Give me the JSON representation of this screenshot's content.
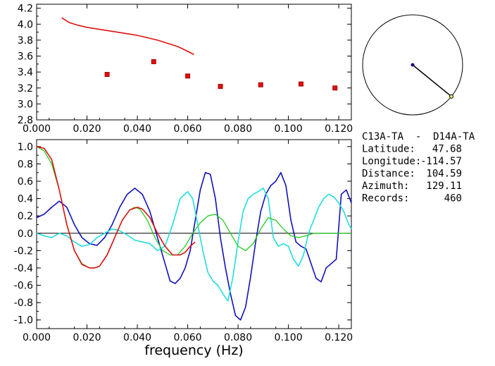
{
  "info": {
    "station_pair": "C13A-TA  -  D14A-TA",
    "rows": [
      {
        "label": "Latitude:",
        "value": "47.68"
      },
      {
        "label": "Longitude:",
        "value": "-114.57"
      },
      {
        "label": "Distance:",
        "value": "104.59"
      },
      {
        "label": "Azimuth:",
        "value": "129.11"
      },
      {
        "label": "Records:",
        "value": "460"
      }
    ]
  },
  "colors": {
    "red": "#dd1111",
    "blue": "#1111bb",
    "cyan": "#22dddd",
    "green": "#22cc22",
    "axis": "#000000",
    "marker_edge": "#aa0000",
    "azimuth_end": "#eeee66",
    "azimuth_center": "#111188"
  },
  "chart_data": [
    {
      "type": "scatter",
      "title": "",
      "xlabel": "",
      "ylabel": "",
      "xlim": [
        0.0,
        0.125
      ],
      "ylim": [
        2.8,
        4.25
      ],
      "x_ticks": [
        "0.000",
        "0.020",
        "0.040",
        "0.060",
        "0.080",
        "0.100",
        "0.120"
      ],
      "y_ticks": [
        "2.8",
        "3.0",
        "3.2",
        "3.4",
        "3.6",
        "3.8",
        "4.0",
        "4.2"
      ],
      "series": [
        {
          "kind": "line",
          "color": "#dd1111",
          "x": [
            0.01,
            0.013,
            0.016,
            0.02,
            0.024,
            0.028,
            0.032,
            0.036,
            0.04,
            0.044,
            0.048,
            0.052,
            0.056,
            0.06,
            0.0625
          ],
          "y": [
            4.08,
            4.02,
            3.99,
            3.96,
            3.94,
            3.92,
            3.9,
            3.88,
            3.86,
            3.83,
            3.8,
            3.76,
            3.72,
            3.66,
            3.62
          ]
        },
        {
          "kind": "points",
          "color": "#dd1111",
          "x": [
            0.028,
            0.0465,
            0.06,
            0.073,
            0.089,
            0.105,
            0.1185
          ],
          "y": [
            3.37,
            3.53,
            3.35,
            3.22,
            3.24,
            3.25,
            3.2
          ]
        }
      ]
    },
    {
      "type": "line",
      "title": "",
      "xlabel": "frequency (Hz)",
      "ylabel": "",
      "xlim": [
        0.0,
        0.125
      ],
      "ylim": [
        -1.1,
        1.08
      ],
      "x_ticks": [
        "0.000",
        "0.020",
        "0.040",
        "0.060",
        "0.080",
        "0.100",
        "0.120"
      ],
      "y_ticks": [
        "1.0",
        "0.8",
        "0.6",
        "0.4",
        "0.2",
        "0.0",
        "-0.2",
        "-0.4",
        "-0.6",
        "-0.8",
        "-1.0"
      ],
      "zero_line": 0.0,
      "series": [
        {
          "color": "#1111bb",
          "x": [
            0.0,
            0.003,
            0.006,
            0.009,
            0.012,
            0.015,
            0.018,
            0.021,
            0.024,
            0.027,
            0.03,
            0.033,
            0.036,
            0.039,
            0.042,
            0.045,
            0.048,
            0.051,
            0.053,
            0.055,
            0.057,
            0.059,
            0.061,
            0.063,
            0.065,
            0.067,
            0.069,
            0.071,
            0.073,
            0.075,
            0.077,
            0.079,
            0.081,
            0.083,
            0.085,
            0.087,
            0.089,
            0.091,
            0.093,
            0.095,
            0.097,
            0.099,
            0.101,
            0.103,
            0.105,
            0.107,
            0.109,
            0.111,
            0.113,
            0.115,
            0.117,
            0.119,
            0.121,
            0.123,
            0.125
          ],
          "y": [
            0.18,
            0.22,
            0.3,
            0.37,
            0.3,
            0.1,
            -0.05,
            -0.12,
            -0.14,
            -0.05,
            0.1,
            0.3,
            0.45,
            0.52,
            0.45,
            0.25,
            -0.05,
            -0.35,
            -0.55,
            -0.58,
            -0.52,
            -0.4,
            -0.2,
            0.15,
            0.5,
            0.7,
            0.68,
            0.4,
            -0.05,
            -0.4,
            -0.7,
            -0.95,
            -1.0,
            -0.85,
            -0.5,
            -0.1,
            0.25,
            0.45,
            0.55,
            0.6,
            0.7,
            0.55,
            0.15,
            -0.1,
            -0.15,
            -0.18,
            -0.35,
            -0.52,
            -0.56,
            -0.4,
            -0.35,
            -0.3,
            0.45,
            0.5,
            0.35
          ]
        },
        {
          "color": "#22dddd",
          "x": [
            0.0,
            0.003,
            0.006,
            0.009,
            0.012,
            0.015,
            0.018,
            0.021,
            0.024,
            0.027,
            0.03,
            0.033,
            0.036,
            0.039,
            0.042,
            0.045,
            0.048,
            0.051,
            0.054,
            0.057,
            0.06,
            0.062,
            0.064,
            0.066,
            0.068,
            0.07,
            0.072,
            0.074,
            0.076,
            0.078,
            0.08,
            0.082,
            0.084,
            0.086,
            0.088,
            0.09,
            0.092,
            0.094,
            0.096,
            0.098,
            0.1,
            0.102,
            0.104,
            0.106,
            0.108,
            0.11,
            0.112,
            0.114,
            0.116,
            0.118,
            0.12,
            0.122,
            0.124,
            0.125
          ],
          "y": [
            0.0,
            -0.03,
            -0.05,
            0.0,
            -0.03,
            -0.1,
            -0.15,
            -0.13,
            -0.05,
            0.0,
            0.05,
            0.03,
            -0.02,
            -0.08,
            -0.1,
            -0.12,
            -0.2,
            -0.15,
            0.1,
            0.4,
            0.48,
            0.4,
            0.1,
            -0.2,
            -0.45,
            -0.55,
            -0.6,
            -0.7,
            -0.78,
            -0.5,
            -0.1,
            0.25,
            0.4,
            0.45,
            0.48,
            0.52,
            0.4,
            -0.05,
            -0.15,
            -0.12,
            -0.15,
            -0.3,
            -0.38,
            -0.25,
            0.0,
            0.15,
            0.3,
            0.4,
            0.45,
            0.42,
            0.35,
            0.25,
            0.1,
            0.05
          ]
        },
        {
          "color": "#22cc22",
          "x": [
            0.0,
            0.003,
            0.006,
            0.009,
            0.012,
            0.015,
            0.018,
            0.021,
            0.023,
            0.025,
            0.028,
            0.031,
            0.034,
            0.037,
            0.039,
            0.041,
            0.044,
            0.047,
            0.05,
            0.053,
            0.056,
            0.059,
            0.062,
            0.065,
            0.068,
            0.071,
            0.074,
            0.077,
            0.08,
            0.083,
            0.086,
            0.089,
            0.092,
            0.095,
            0.098,
            0.101,
            0.104,
            0.107,
            0.11,
            0.113,
            0.116,
            0.119,
            0.122,
            0.125
          ],
          "y": [
            1.0,
            0.95,
            0.8,
            0.5,
            0.1,
            -0.2,
            -0.35,
            -0.4,
            -0.4,
            -0.38,
            -0.25,
            -0.05,
            0.15,
            0.27,
            0.3,
            0.28,
            0.15,
            -0.05,
            -0.2,
            -0.25,
            -0.25,
            -0.15,
            0.0,
            0.12,
            0.2,
            0.22,
            0.15,
            0.0,
            -0.15,
            -0.2,
            -0.12,
            0.05,
            0.18,
            0.15,
            0.05,
            -0.03,
            -0.05,
            -0.03,
            0.0,
            0.0,
            0.0,
            0.0,
            0.0,
            0.0
          ]
        },
        {
          "color": "#dd1111",
          "x": [
            0.0,
            0.003,
            0.006,
            0.009,
            0.012,
            0.015,
            0.018,
            0.021,
            0.023,
            0.025,
            0.028,
            0.031,
            0.034,
            0.037,
            0.04,
            0.042,
            0.045,
            0.048,
            0.051,
            0.054,
            0.057,
            0.059,
            0.061,
            0.063
          ],
          "y": [
            1.0,
            0.98,
            0.85,
            0.5,
            0.1,
            -0.2,
            -0.36,
            -0.4,
            -0.4,
            -0.38,
            -0.25,
            -0.05,
            0.15,
            0.27,
            0.3,
            0.28,
            0.18,
            0.0,
            -0.15,
            -0.25,
            -0.25,
            -0.22,
            -0.15,
            -0.1
          ]
        }
      ]
    },
    {
      "type": "scatter",
      "title": "",
      "xlabel": "",
      "ylabel": "",
      "polar": true,
      "azimuth_deg": 129.11,
      "radius_fraction": 1.0
    }
  ]
}
